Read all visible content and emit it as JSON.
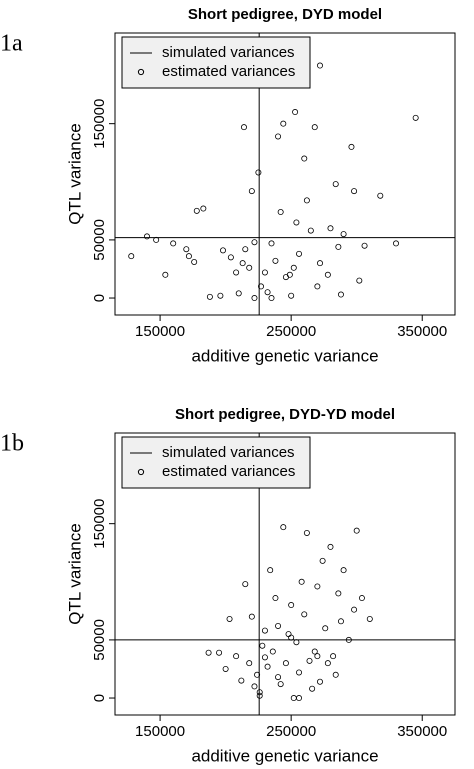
{
  "chart_data": [
    {
      "type": "scatter",
      "panel_label": "1a",
      "title": "Short pedigree, DYD model",
      "xlabel": "additive genetic variance",
      "ylabel": "QTL variance",
      "xlim": [
        115600,
        375000
      ],
      "ylim": [
        -14600,
        228000
      ],
      "xticks": [
        150000,
        250000,
        350000
      ],
      "yticks": [
        0,
        50000,
        150000
      ],
      "legend": "top-left",
      "simulated": {
        "name": "simulated variances",
        "x": 225600,
        "y": 52000,
        "color": "#000000"
      },
      "series": [
        {
          "name": "estimated variances",
          "color": "#000000",
          "x": [
            128000,
            140000,
            147000,
            154000,
            160000,
            170000,
            172000,
            176000,
            178000,
            183000,
            188000,
            196000,
            198000,
            204000,
            208000,
            210000,
            213000,
            214000,
            218000,
            220000,
            222000,
            225000,
            227000,
            230000,
            232000,
            235000,
            238000,
            240000,
            242000,
            244000,
            246000,
            249000,
            252000,
            253000,
            254000,
            256000,
            272000,
            260000,
            262000,
            265000,
            268000,
            272000,
            278000,
            280000,
            284000,
            286000,
            290000,
            296000,
            298000,
            302000,
            306000,
            318000,
            330000,
            345000,
            222000,
            250000,
            235000,
            270000,
            288000,
            215000
          ],
          "y": [
            36000,
            53000,
            50000,
            20000,
            47000,
            42000,
            36000,
            31000,
            75000,
            77000,
            1000,
            2000,
            41000,
            35000,
            22000,
            4000,
            30000,
            147000,
            26000,
            92000,
            48000,
            108000,
            10000,
            22000,
            5000,
            0,
            32000,
            139000,
            74000,
            150000,
            18000,
            20000,
            26000,
            160000,
            65000,
            38000,
            200000,
            120000,
            84000,
            58000,
            147000,
            30000,
            20000,
            60000,
            98000,
            44000,
            55000,
            130000,
            92000,
            15000,
            45000,
            88000,
            47000,
            155000,
            0,
            2000,
            47000,
            10000,
            3000,
            42000
          ]
        }
      ]
    },
    {
      "type": "scatter",
      "panel_label": "1b",
      "title": "Short pedigree, DYD-YD model",
      "xlabel": "additive genetic variance",
      "ylabel": "QTL variance",
      "xlim": [
        115600,
        375000
      ],
      "ylim": [
        -14600,
        228000
      ],
      "xticks": [
        150000,
        250000,
        350000
      ],
      "yticks": [
        0,
        50000,
        150000
      ],
      "legend": "top-left",
      "simulated": {
        "name": "simulated variances",
        "x": 225600,
        "y": 50000,
        "color": "#000000"
      },
      "series": [
        {
          "name": "estimated variances",
          "color": "#000000",
          "x": [
            187000,
            195000,
            200000,
            203000,
            208000,
            212000,
            215000,
            218000,
            220000,
            222000,
            224000,
            226000,
            228000,
            230000,
            232000,
            234000,
            236000,
            238000,
            240000,
            242000,
            244000,
            246000,
            248000,
            250000,
            252000,
            254000,
            256000,
            258000,
            260000,
            262000,
            264000,
            266000,
            268000,
            270000,
            272000,
            274000,
            276000,
            278000,
            280000,
            282000,
            284000,
            286000,
            288000,
            290000,
            294000,
            298000,
            300000,
            304000,
            310000,
            226000,
            240000,
            256000,
            270000,
            250000,
            230000
          ],
          "y": [
            39000,
            39000,
            25000,
            68000,
            36000,
            15000,
            98000,
            30000,
            70000,
            10000,
            20000,
            5000,
            45000,
            58000,
            27000,
            110000,
            40000,
            86000,
            62000,
            12000,
            147000,
            30000,
            55000,
            80000,
            0,
            48000,
            22000,
            100000,
            72000,
            142000,
            32000,
            8000,
            40000,
            96000,
            14000,
            118000,
            60000,
            30000,
            130000,
            36000,
            20000,
            90000,
            66000,
            110000,
            50000,
            76000,
            144000,
            86000,
            68000,
            2000,
            18000,
            0,
            36000,
            52000,
            35000
          ]
        }
      ]
    }
  ]
}
